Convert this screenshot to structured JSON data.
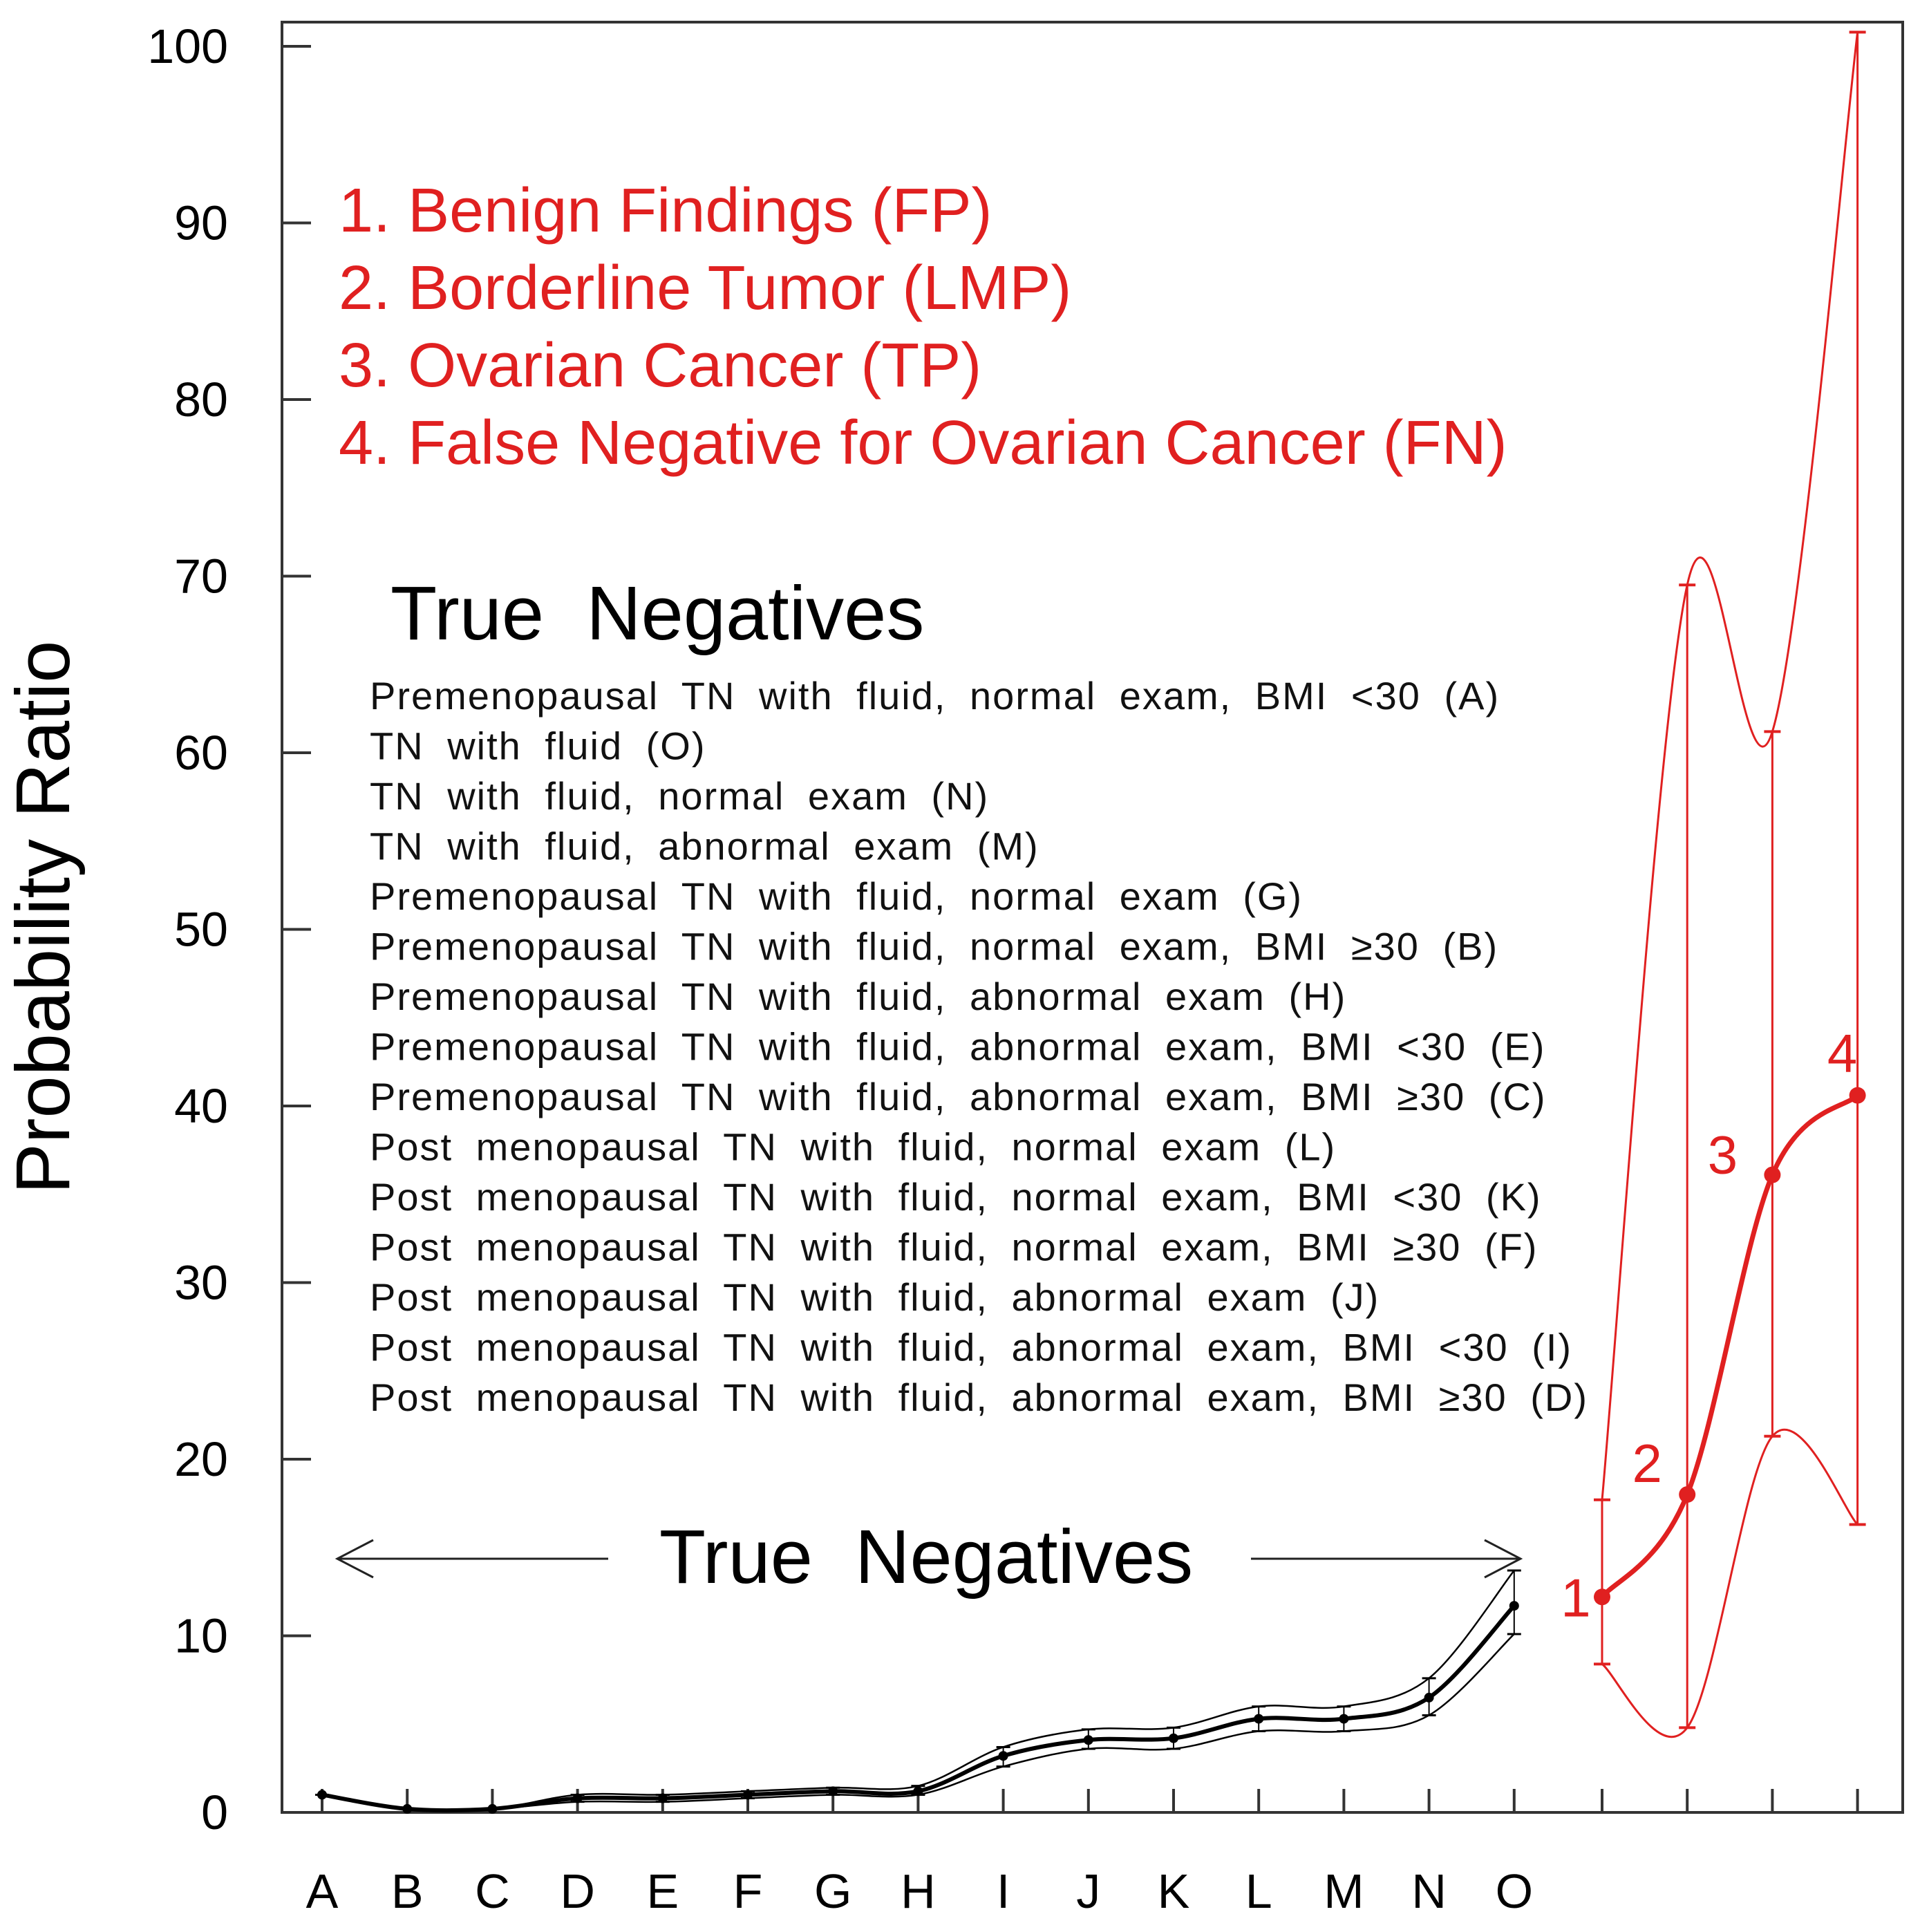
{
  "colors": {
    "tn": "#000000",
    "red": "#e02020",
    "axis": "#333333"
  },
  "chart_data": {
    "type": "line",
    "title": "",
    "xlabel": "",
    "ylabel": "Probability Ratio",
    "ylim": [
      0,
      100
    ],
    "yticks": [
      0,
      10,
      20,
      30,
      40,
      50,
      60,
      70,
      80,
      90,
      100
    ],
    "categories": [
      "A",
      "B",
      "C",
      "D",
      "E",
      "F",
      "G",
      "H",
      "I",
      "J",
      "K",
      "L",
      "M",
      "N",
      "O"
    ],
    "true_negatives": {
      "name": "True Negatives",
      "mean": [
        1.0,
        0.2,
        0.2,
        0.8,
        0.8,
        1.0,
        1.2,
        1.2,
        3.2,
        4.1,
        4.2,
        5.3,
        5.3,
        6.5,
        11.7
      ],
      "upper": [
        1.0,
        0.2,
        0.2,
        1.0,
        1.0,
        1.2,
        1.4,
        1.5,
        3.7,
        4.7,
        4.8,
        6.0,
        6.0,
        7.6,
        13.7
      ],
      "lower": [
        1.0,
        0.2,
        0.2,
        0.6,
        0.6,
        0.8,
        1.0,
        1.0,
        2.6,
        3.6,
        3.6,
        4.6,
        4.6,
        5.5,
        10.1
      ]
    },
    "disease_groups": {
      "labels": [
        "1",
        "2",
        "3",
        "4"
      ],
      "mean": [
        12.2,
        18.0,
        36.1,
        40.6
      ],
      "upper": [
        17.7,
        69.5,
        61.2,
        100.8
      ],
      "lower": [
        8.4,
        4.8,
        21.3,
        16.3
      ]
    },
    "arrow_label": "True  Negatives"
  },
  "legend_red": [
    "1. Benign Findings (FP)",
    "2. Borderline Tumor (LMP)",
    "3. Ovarian Cancer (TP)",
    "4. False Negative for Ovarian Cancer (FN)"
  ],
  "tn_title": "True  Negatives",
  "tn_list": [
    "Premenopausal TN with fluid, normal exam, BMI <30 (A)",
    "TN with fluid (O)",
    "TN with fluid, normal exam (N)",
    "TN with fluid, abnormal exam (M)",
    "Premenopausal TN with fluid, normal exam (G)",
    "Premenopausal TN with fluid, normal exam, BMI ≥30 (B)",
    "Premenopausal TN with fluid, abnormal exam (H)",
    "Premenopausal TN with fluid, abnormal exam, BMI <30 (E)",
    "Premenopausal TN with fluid, abnormal exam, BMI ≥30 (C)",
    "Post menopausal TN with fluid, normal exam (L)",
    "Post menopausal TN with fluid, normal exam, BMI <30 (K)",
    "Post menopausal TN with fluid, normal exam, BMI ≥30 (F)",
    "Post menopausal TN with fluid, abnormal exam (J)",
    "Post menopausal TN with fluid, abnormal exam, BMI <30 (I)",
    "Post menopausal TN with fluid, abnormal exam, BMI ≥30 (D)"
  ]
}
